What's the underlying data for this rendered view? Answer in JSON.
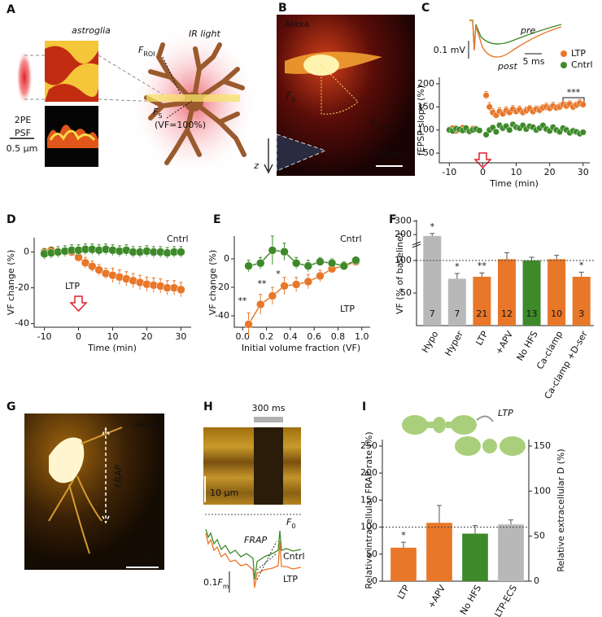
{
  "figure": {
    "panel_letters": [
      "A",
      "B",
      "C",
      "D",
      "E",
      "F",
      "G",
      "H",
      "I"
    ],
    "A": {
      "astroglia": "astroglia",
      "ir_light": "IR light",
      "psf": [
        "2PE",
        "PSF"
      ],
      "scale": "0.5 µm",
      "f_roi": [
        "F",
        "ROI"
      ],
      "f_s": [
        "F",
        "S"
      ],
      "vf_note": "(VF=100%)",
      "z_axis": "z"
    },
    "B": {
      "dye": "Alexa",
      "f_s": [
        "F",
        "S"
      ],
      "f_roi": [
        "F",
        "ROI"
      ],
      "scale": "20 µm"
    },
    "G": {
      "dye": "Alexa",
      "line_label": "FRAP",
      "scale": "15 µm"
    },
    "H": {
      "time_scale": "300 ms",
      "space_scale": "10 µm",
      "baseline": [
        "F",
        "0"
      ],
      "frap": "FRAP",
      "traces": [
        "Cntrl",
        "LTP"
      ],
      "f_scale": [
        "0.1",
        "F",
        "m"
      ]
    }
  },
  "chart_data": [
    {
      "type": "scatter",
      "xlabel": "Time (min)",
      "ylabel": "fEPSP slope (%)",
      "inset": {
        "scale_y": "0.1 mV",
        "scale_x": "5 ms",
        "pre": "pre",
        "post": "post"
      },
      "annotation": "***",
      "xlim": [
        -13,
        32
      ],
      "ylim": [
        29,
        214
      ],
      "xticks": [
        -10,
        0,
        10,
        20,
        30
      ],
      "yticks": [
        50,
        100,
        150,
        200
      ],
      "x": [
        -10,
        -9,
        -8,
        -7,
        -6,
        -5,
        -4,
        -3,
        -2,
        -1,
        1,
        2,
        3,
        4,
        5,
        6,
        7,
        8,
        9,
        10,
        11,
        12,
        13,
        14,
        15,
        16,
        17,
        18,
        19,
        20,
        21,
        22,
        23,
        24,
        25,
        26,
        27,
        28,
        29,
        30
      ],
      "series": [
        {
          "name": "LTP",
          "color": "#e8772a",
          "values": [
            100,
            104,
            98,
            102,
            105,
            100,
            97,
            103,
            101,
            99,
            175,
            150,
            138,
            132,
            140,
            135,
            142,
            138,
            145,
            140,
            144,
            138,
            142,
            146,
            140,
            145,
            143,
            148,
            150,
            147,
            152,
            148,
            150,
            155,
            152,
            156,
            150,
            154,
            158,
            155
          ],
          "errors": [
            6,
            5,
            6,
            5,
            6,
            5,
            6,
            5,
            6,
            5,
            8,
            9,
            8,
            7,
            8,
            7,
            8,
            7,
            8,
            7,
            8,
            7,
            8,
            7,
            8,
            7,
            8,
            7,
            8,
            7,
            8,
            7,
            8,
            7,
            8,
            7,
            8,
            7,
            8,
            7
          ]
        },
        {
          "name": "Cntrl",
          "color": "#3e8a2a",
          "values": [
            100,
            98,
            103,
            101,
            99,
            104,
            97,
            100,
            102,
            99,
            90,
            100,
            105,
            96,
            110,
            104,
            108,
            100,
            112,
            106,
            104,
            110,
            102,
            108,
            106,
            100,
            104,
            110,
            102,
            98,
            106,
            100,
            96,
            104,
            100,
            94,
            98,
            96,
            92,
            95
          ],
          "errors": [
            6,
            5,
            6,
            5,
            6,
            5,
            6,
            5,
            6,
            5,
            6,
            5,
            6,
            5,
            6,
            5,
            6,
            5,
            6,
            5,
            6,
            5,
            6,
            5,
            6,
            5,
            6,
            5,
            6,
            5,
            6,
            5,
            6,
            5,
            6,
            5,
            6,
            5,
            6,
            5
          ]
        }
      ]
    },
    {
      "type": "line",
      "xlabel": "Time (min)",
      "ylabel": "VF change (%)",
      "xlim": [
        -13,
        33
      ],
      "ylim": [
        -42,
        8
      ],
      "xticks": [
        -10,
        0,
        10,
        20,
        30
      ],
      "yticks": [
        -40,
        -20,
        0
      ],
      "x": [
        -10,
        -8,
        -6,
        -4,
        -2,
        0,
        2,
        4,
        6,
        8,
        10,
        12,
        14,
        16,
        18,
        20,
        22,
        24,
        26,
        28,
        30
      ],
      "series": [
        {
          "name": "LTP",
          "color": "#e8772a",
          "values": [
            0,
            1,
            0,
            0.5,
            0,
            -3,
            -6,
            -8,
            -10,
            -12,
            -13,
            -14,
            -15,
            -16,
            -17,
            -18,
            -18.5,
            -19,
            -20,
            -20,
            -21
          ],
          "errors": [
            2,
            2,
            2,
            2,
            2,
            2,
            3,
            3,
            3,
            3,
            4,
            4,
            4,
            4,
            4,
            4,
            4,
            4,
            4,
            4,
            4
          ]
        },
        {
          "name": "Cntrl",
          "color": "#3e8a2a",
          "values": [
            -1,
            -0.5,
            0,
            0.5,
            1,
            1,
            1.5,
            1.5,
            1,
            1.5,
            1,
            0.5,
            1,
            0,
            0,
            0.5,
            0,
            0,
            -0.5,
            0,
            0
          ],
          "errors": [
            3,
            3,
            3,
            3,
            3,
            3,
            3,
            3,
            3,
            3,
            3,
            3,
            3,
            3,
            3,
            3,
            3,
            3,
            3,
            3,
            3
          ]
        }
      ]
    },
    {
      "type": "line",
      "xlabel": "Initial volume fraction (VF)",
      "ylabel": "VF change (%)",
      "annotations": [
        "**",
        "**",
        "*"
      ],
      "xlim": [
        -0.07,
        1.07
      ],
      "ylim": [
        -48,
        16
      ],
      "xticks": [
        {
          "value": 0,
          "label": "0.0"
        },
        0.2,
        0.4,
        0.6,
        0.8,
        {
          "value": 1,
          "label": "1.0"
        }
      ],
      "yticks": [
        -40,
        -20,
        0
      ],
      "x": [
        0.05,
        0.15,
        0.25,
        0.35,
        0.45,
        0.55,
        0.65,
        0.75,
        0.85,
        0.95
      ],
      "series": [
        {
          "name": "LTP",
          "color": "#e8772a",
          "values": [
            -46,
            -32,
            -26,
            -19,
            -18,
            -16,
            -12,
            -7,
            -5,
            -2
          ],
          "errors": [
            8,
            7,
            6,
            6,
            5,
            5,
            4,
            3,
            3,
            2
          ]
        },
        {
          "name": "Cntrl",
          "color": "#3e8a2a",
          "values": [
            -5,
            -3,
            6,
            5,
            -3,
            -5,
            -2,
            -3,
            -5,
            -1
          ],
          "errors": [
            4,
            4,
            10,
            6,
            4,
            4,
            3,
            3,
            3,
            2
          ]
        }
      ]
    },
    {
      "type": "bar",
      "ylabel": "VF (% of baseline)",
      "categories": [
        "Hypo",
        "Hyper",
        "LTP",
        "+APV",
        "No HFS",
        "Ca-clamp",
        "Ca-clamp +D-ser"
      ],
      "values": [
        190,
        72,
        75,
        102,
        100,
        102,
        75
      ],
      "errors": [
        18,
        8,
        6,
        10,
        5,
        6,
        7
      ],
      "n": [
        7,
        7,
        21,
        12,
        13,
        10,
        3
      ],
      "stars": [
        "*",
        "*",
        "**",
        null,
        null,
        null,
        "*"
      ],
      "colors": [
        "#b8b8b8",
        "#b8b8b8",
        "#e8772a",
        "#e8772a",
        "#3e8a2a",
        "#e8772a",
        "#e8772a"
      ],
      "ylim": [
        0,
        310
      ],
      "ybreak": [
        125,
        150
      ],
      "yticks": [
        50,
        100,
        200,
        300
      ],
      "refline": 100
    },
    {
      "type": "bar",
      "ylabel": "Relative intracellular FRAP rate (%)",
      "y2label": "Relative extracellular D (%)",
      "cartoon_label": "LTP",
      "categories": [
        "LTP",
        "+APV",
        "No HFS",
        "LTP-ECS"
      ],
      "values": [
        62,
        108,
        88,
        63
      ],
      "errors": [
        10,
        32,
        15,
        5
      ],
      "axes": [
        "y",
        "y",
        "y",
        "y2"
      ],
      "stars": [
        "*",
        null,
        null,
        null
      ],
      "colors": [
        "#e8772a",
        "#e8772a",
        "#3e8a2a",
        "#b8b8b8"
      ],
      "ylim": [
        0,
        262
      ],
      "yticks": [
        0,
        50,
        100,
        150,
        200,
        250
      ],
      "y2lim": [
        0,
        157.2
      ],
      "y2ticks": [
        0,
        50,
        100,
        150
      ],
      "refline": 100
    }
  ]
}
